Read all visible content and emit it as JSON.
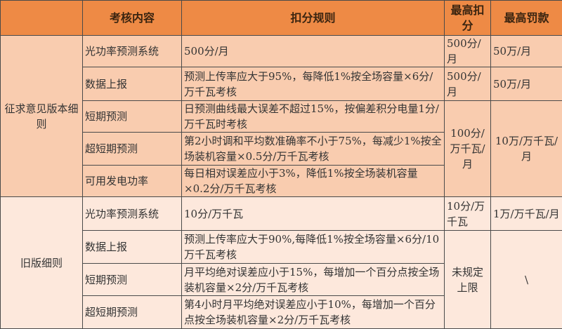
{
  "colors": {
    "header": "#ee8a45",
    "group1": "#f9ccaf",
    "group2": "#fde8dc"
  },
  "headers": [
    "",
    "考核内容",
    "扣分规则",
    "最高扣分",
    "最高罚款"
  ],
  "groups": [
    {
      "name": "征求意见版本细则",
      "rows": [
        {
          "item": "光功率预测系统",
          "rule": "500分/月",
          "max_score": "500分/月",
          "max_fine": "50万/月"
        },
        {
          "item": "数据上报",
          "rule": "预测上传率应大于95%，每降低1%按全场容量×6分/万千瓦考核",
          "max_score": "500分/月",
          "max_fine": "50万/月"
        },
        {
          "item": "短期预测",
          "rule": "日预测曲线最大误差不超过15%，按偏差积分电量1分/万千瓦时考核"
        },
        {
          "item": "超短期预测",
          "rule": "第2小时调和平均数准确率不小于75%，每减少1%按全场装机容量×0.5分/万千瓦考核"
        },
        {
          "item": "可用发电功率",
          "rule": "每日相对误差应小于3%，降低1%按全场装机容量×0.2分/万千瓦考核"
        }
      ],
      "merged_max_score": "100分/万千瓦/月",
      "merged_max_fine": "10万/万千瓦/月"
    },
    {
      "name": "旧版细则",
      "rows": [
        {
          "item": "光功率预测系统",
          "rule": "10分/万千瓦",
          "max_score": "10分/万千瓦",
          "max_fine": "1万/万千瓦/月"
        },
        {
          "item": "数据上报",
          "rule": "预测上传率应大于90%,每降低1%按全场容量×6分/10万千瓦考核"
        },
        {
          "item": "短期预测",
          "rule": "月平均绝对误差应小于15%，每增加一个百分点按全场装机容量×2分/万千瓦考核"
        },
        {
          "item": "超短期预测",
          "rule": "第4小时月平均绝对误差应小于10%，每增加一个百分点按全场装机容量×2分/万千瓦考核"
        }
      ],
      "merged_max_score": "未规定上限",
      "merged_max_fine": "\\"
    }
  ]
}
